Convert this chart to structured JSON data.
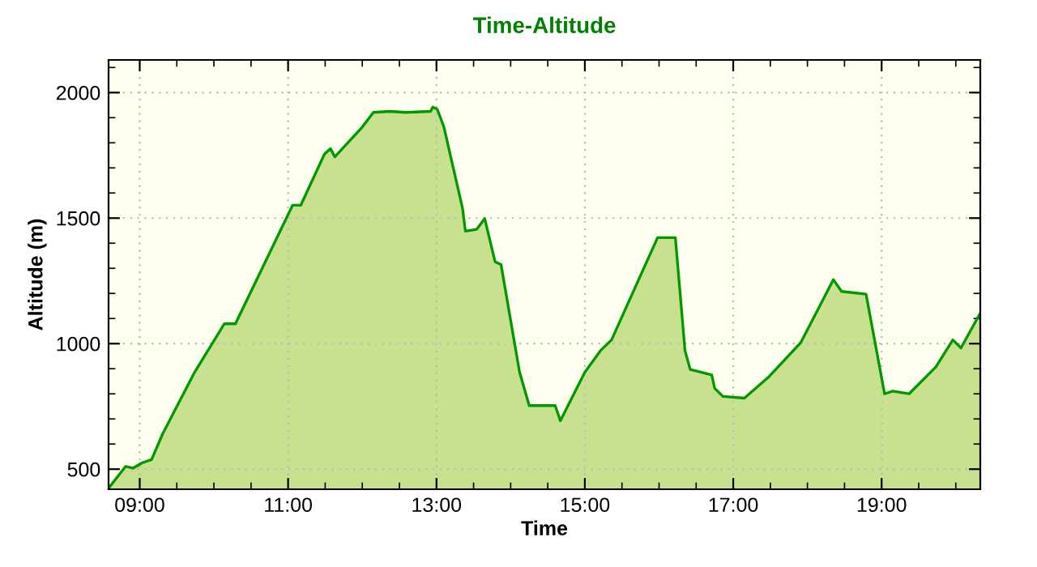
{
  "chart_data": {
    "type": "area",
    "title": "Time-Altitude",
    "xlabel": "Time",
    "ylabel": "Altitude (m)",
    "x": [
      8.58,
      8.81,
      8.91,
      9.03,
      9.16,
      9.31,
      9.74,
      10.14,
      10.29,
      11.06,
      11.17,
      11.49,
      11.57,
      11.63,
      12.0,
      12.15,
      12.37,
      12.59,
      12.92,
      12.95,
      13.01,
      13.1,
      13.35,
      13.39,
      13.54,
      13.65,
      13.79,
      13.87,
      14.12,
      14.25,
      14.6,
      14.67,
      15.0,
      15.21,
      15.36,
      15.98,
      16.22,
      16.35,
      16.42,
      16.71,
      16.75,
      16.86,
      17.15,
      17.47,
      17.91,
      18.35,
      18.46,
      18.79,
      19.04,
      19.15,
      19.37,
      19.73,
      19.96,
      20.07,
      20.33
    ],
    "series": [
      {
        "color": "#009900",
        "values": [
          424,
          511,
          504,
          525,
          538,
          641,
          886,
          1079,
          1079,
          1551,
          1551,
          1755,
          1777,
          1744,
          1863,
          1921,
          1925,
          1921,
          1925,
          1942,
          1934,
          1863,
          1541,
          1448,
          1455,
          1498,
          1326,
          1315,
          886,
          753,
          753,
          693,
          886,
          972,
          1015,
          1422,
          1422,
          972,
          897,
          875,
          822,
          790,
          783,
          865,
          1004,
          1255,
          1208,
          1197,
          800,
          811,
          800,
          907,
          1015,
          983,
          1122
        ]
      }
    ],
    "xlim": [
      8.58,
      20.33
    ],
    "xticks": [
      {
        "value": 9,
        "label": "09:00"
      },
      {
        "value": 11,
        "label": "11:00"
      },
      {
        "value": 13,
        "label": "13:00"
      },
      {
        "value": 15,
        "label": "15:00"
      },
      {
        "value": 17,
        "label": "17:00"
      },
      {
        "value": 19,
        "label": "19:00"
      }
    ],
    "ylim": [
      420,
      2130
    ],
    "yticks": [
      500,
      1000,
      1500,
      2000
    ],
    "grid": true,
    "legend": false
  }
}
